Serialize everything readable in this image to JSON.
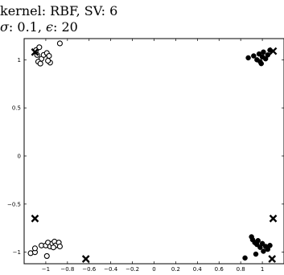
{
  "title": {
    "line1": "kernel: RBF, SV: 6",
    "line2_prefix": "σ: 0.1, ",
    "line2_suffix": "ϵ: 20"
  },
  "chart_data": {
    "type": "scatter",
    "xlim": [
      -1.2,
      1.2
    ],
    "ylim": [
      -1.12,
      1.22
    ],
    "xticks": [
      -1,
      -0.8,
      -0.6,
      -0.4,
      -0.2,
      0,
      0.2,
      0.4,
      0.6,
      0.8,
      1
    ],
    "xtick_labels": [
      "−1",
      "−0.8",
      "−0.6",
      "−0.4",
      "−0.2",
      "0",
      "0.2",
      "0.4",
      "0.6",
      "0.8",
      "1"
    ],
    "yticks": [
      1,
      0.5,
      0,
      -0.5,
      -1
    ],
    "ytick_labels": [
      "1",
      "0.5",
      "0",
      "−0.5",
      "−1"
    ],
    "grid": false,
    "colors": {
      "class_neg": "#000000",
      "class_pos": "#000000",
      "support_vector": "#000000"
    },
    "series": [
      {
        "marker": "open-circle",
        "points": [
          [
            -1.09,
            1.1
          ],
          [
            -1.06,
            1.13
          ],
          [
            -1.08,
            1.05
          ],
          [
            -1.04,
            1.01
          ],
          [
            -1.07,
            0.98
          ],
          [
            -1.05,
            0.96
          ],
          [
            -1.02,
            1.05
          ],
          [
            -0.99,
            1.07
          ],
          [
            -0.97,
            1.04
          ],
          [
            -0.96,
            0.97
          ],
          [
            -0.98,
            0.99
          ],
          [
            -0.87,
            1.17
          ],
          [
            -1.14,
            -1.01
          ],
          [
            -1.1,
            -1.0
          ],
          [
            -1.1,
            -0.96
          ],
          [
            -1.04,
            -0.93
          ],
          [
            -1.0,
            -0.93
          ],
          [
            -0.98,
            -0.9
          ],
          [
            -0.96,
            -0.94
          ],
          [
            -0.94,
            -0.91
          ],
          [
            -0.92,
            -0.89
          ],
          [
            -0.91,
            -0.93
          ],
          [
            -0.93,
            -0.95
          ],
          [
            -0.88,
            -0.9
          ],
          [
            -0.87,
            -0.94
          ],
          [
            -0.99,
            -1.04
          ]
        ]
      },
      {
        "marker": "filled-circle",
        "points": [
          [
            0.87,
            1.02
          ],
          [
            0.92,
            1.04
          ],
          [
            0.95,
            1.0
          ],
          [
            0.97,
            1.06
          ],
          [
            0.98,
            0.98
          ],
          [
            1.0,
            1.03
          ],
          [
            1.01,
            1.08
          ],
          [
            1.03,
            1.01
          ],
          [
            1.05,
            1.05
          ],
          [
            1.07,
            1.1
          ],
          [
            0.99,
            0.96
          ],
          [
            0.84,
            -1.06
          ],
          [
            0.9,
            -0.84
          ],
          [
            0.91,
            -0.87
          ],
          [
            0.93,
            -0.9
          ],
          [
            0.95,
            -0.92
          ],
          [
            0.96,
            -0.88
          ],
          [
            0.98,
            -0.95
          ],
          [
            1.0,
            -0.91
          ],
          [
            1.01,
            -0.99
          ],
          [
            1.03,
            -0.94
          ],
          [
            1.05,
            -0.97
          ],
          [
            0.94,
            -1.02
          ],
          [
            1.07,
            -0.93
          ]
        ]
      },
      {
        "marker": "support-vector-x",
        "points": [
          [
            -1.1,
            1.08
          ],
          [
            1.1,
            1.09
          ],
          [
            -1.1,
            -0.65
          ],
          [
            1.1,
            -0.65
          ],
          [
            -0.63,
            -1.07
          ],
          [
            1.09,
            -1.07
          ]
        ]
      }
    ]
  }
}
